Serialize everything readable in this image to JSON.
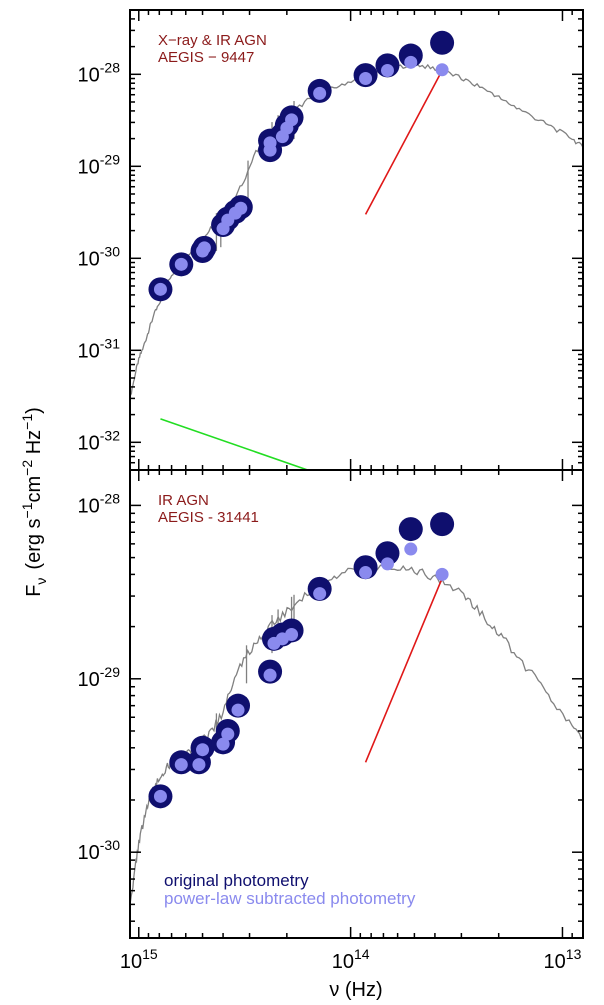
{
  "colors": {
    "original": "#0f0f6e",
    "subtracted": "#8a8aee",
    "template": "#808080",
    "powerlaw_red": "#e01818",
    "powerlaw_green": "#22dd22",
    "annotation": "#8b1a1a"
  },
  "y_label": {
    "symbol": "F",
    "sub": "ν",
    "open": "(erg s",
    "e1": "−1",
    "mid": "cm",
    "e2": "−2",
    "hz": " Hz",
    "e3": "−1",
    "close": ")"
  },
  "x_label": "ν (Hz)",
  "chart_data": [
    {
      "type": "scatter",
      "panel": "top",
      "annotation": [
        "X−ray & IR AGN",
        "AEGIS − 9447"
      ],
      "x_scale": "log",
      "x_reversed": true,
      "xlim": [
        1100000000000000.0,
        8000000000000.0
      ],
      "y_scale": "log",
      "ylim": [
        5e-33,
        5e-28
      ],
      "x_ticks": [
        {
          "base": "10",
          "exp": "15"
        },
        {
          "base": "10",
          "exp": "14"
        },
        {
          "base": "10",
          "exp": "13"
        }
      ],
      "y_ticks": [
        {
          "base": "10",
          "exp": "-28"
        },
        {
          "base": "10",
          "exp": "-29"
        },
        {
          "base": "10",
          "exp": "-30"
        },
        {
          "base": "10",
          "exp": "-31"
        },
        {
          "base": "10",
          "exp": "-32"
        }
      ],
      "series": [
        {
          "role": "original",
          "x": [
            790000000000000.0,
            630000000000000.0,
            500000000000000.0,
            490000000000000.0,
            400000000000000.0,
            380000000000000.0,
            350000000000000.0,
            330000000000000.0,
            240000000000000.0,
            240000000000000.0,
            210000000000000.0,
            200000000000000.0,
            190000000000000.0,
            140000000000000.0,
            85000000000000.0,
            67000000000000.0,
            52000000000000.0,
            37000000000000.0
          ],
          "y": [
            4.6e-31,
            8.6e-31,
            1.2e-30,
            1.3e-30,
            2.3e-30,
            2.7e-30,
            3.2e-30,
            3.6e-30,
            1.5e-29,
            1.9e-29,
            2.2e-29,
            2.8e-29,
            3.4e-29,
            6.6e-29,
            9.8e-29,
            1.25e-28,
            1.6e-28,
            2.2e-28
          ]
        },
        {
          "role": "subtracted",
          "x": [
            790000000000000.0,
            630000000000000.0,
            500000000000000.0,
            490000000000000.0,
            400000000000000.0,
            380000000000000.0,
            350000000000000.0,
            330000000000000.0,
            240000000000000.0,
            240000000000000.0,
            210000000000000.0,
            200000000000000.0,
            190000000000000.0,
            140000000000000.0,
            85000000000000.0,
            67000000000000.0,
            52000000000000.0,
            37000000000000.0
          ],
          "y": [
            4.6e-31,
            8.6e-31,
            1.2e-30,
            1.3e-30,
            2.1e-30,
            2.6e-30,
            3.1e-30,
            3.5e-30,
            1.5e-29,
            1.8e-29,
            2.1e-29,
            2.6e-29,
            3.2e-29,
            6.2e-29,
            9e-29,
            1.1e-28,
            1.35e-28,
            1.12e-28
          ]
        }
      ],
      "template": {
        "x": [
          1100000000000000.0,
          1050000000000000.0,
          1000000000000000.0,
          950000000000000.0,
          900000000000000.0,
          850000000000000.0,
          800000000000000.0,
          750000000000000.0,
          700000000000000.0,
          650000000000000.0,
          600000000000000.0,
          550000000000000.0,
          500000000000000.0,
          450000000000000.0,
          400000000000000.0,
          360000000000000.0,
          320000000000000.0,
          280000000000000.0,
          250000000000000.0,
          220000000000000.0,
          190000000000000.0,
          160000000000000.0,
          130000000000000.0,
          110000000000000.0,
          90000000000000.0,
          75000000000000.0,
          60000000000000.0,
          50000000000000.0,
          42000000000000.0,
          36000000000000.0,
          30000000000000.0,
          26000000000000.0,
          22000000000000.0,
          19000000000000.0,
          16000000000000.0,
          13000000000000.0,
          11000000000000.0,
          9000000000000.0,
          8000000000000.0
        ],
        "y": [
          3e-32,
          5e-32,
          8e-32,
          1.1e-31,
          1.6e-31,
          2.4e-31,
          3.2e-31,
          4.8e-31,
          6.5e-31,
          8.5e-31,
          1.05e-30,
          1.3e-30,
          1.6e-30,
          2.2e-30,
          2.8e-30,
          4e-30,
          7e-30,
          1.4e-29,
          2e-29,
          2.8e-29,
          3.8e-29,
          5.2e-29,
          6.5e-29,
          7.8e-29,
          9.2e-29,
          1.05e-28,
          1.2e-28,
          1.3e-28,
          1.18e-28,
          1.08e-28,
          9e-29,
          7.8e-29,
          6.5e-29,
          5.2e-29,
          4.2e-29,
          3.2e-29,
          2.6e-29,
          2e-29,
          1.6e-29
        ]
      },
      "lines": [
        {
          "color": "powerlaw_red",
          "x": [
            85000000000000.0,
            37000000000000.0
          ],
          "y": [
            3e-30,
            1.1e-28
          ]
        },
        {
          "color": "powerlaw_green",
          "x": [
            790000000000000.0,
            140000000000000.0
          ],
          "y": [
            1.8e-32,
            4.5e-33
          ]
        }
      ]
    },
    {
      "type": "scatter",
      "panel": "bottom",
      "annotation": [
        "IR AGN",
        "AEGIS - 31441"
      ],
      "x_scale": "log",
      "x_reversed": true,
      "xlim": [
        1100000000000000.0,
        8000000000000.0
      ],
      "y_scale": "log",
      "ylim": [
        3.2e-31,
        1.6e-28
      ],
      "x_ticks": [
        {
          "base": "10",
          "exp": "15"
        },
        {
          "base": "10",
          "exp": "14"
        },
        {
          "base": "10",
          "exp": "13"
        }
      ],
      "y_ticks": [
        {
          "base": "10",
          "exp": "-28"
        },
        {
          "base": "10",
          "exp": "-29"
        },
        {
          "base": "10",
          "exp": "-30"
        }
      ],
      "series": [
        {
          "role": "original",
          "x": [
            790000000000000.0,
            630000000000000.0,
            520000000000000.0,
            500000000000000.0,
            400000000000000.0,
            380000000000000.0,
            340000000000000.0,
            240000000000000.0,
            230000000000000.0,
            210000000000000.0,
            190000000000000.0,
            140000000000000.0,
            85000000000000.0,
            67000000000000.0,
            52000000000000.0,
            37000000000000.0
          ],
          "y": [
            2.1e-30,
            3.3e-30,
            3.3e-30,
            4e-30,
            4.3e-30,
            5e-30,
            7e-30,
            1.1e-29,
            1.7e-29,
            1.8e-29,
            1.9e-29,
            3.3e-29,
            4.4e-29,
            5.3e-29,
            7.3e-29,
            7.8e-29
          ]
        },
        {
          "role": "subtracted",
          "x": [
            790000000000000.0,
            630000000000000.0,
            520000000000000.0,
            500000000000000.0,
            400000000000000.0,
            380000000000000.0,
            340000000000000.0,
            240000000000000.0,
            230000000000000.0,
            210000000000000.0,
            190000000000000.0,
            140000000000000.0,
            85000000000000.0,
            67000000000000.0,
            52000000000000.0,
            37000000000000.0
          ],
          "y": [
            2.1e-30,
            3.2e-30,
            3.2e-30,
            3.9e-30,
            4.2e-30,
            4.8e-30,
            6.6e-30,
            1.05e-29,
            1.6e-29,
            1.7e-29,
            1.8e-29,
            3.1e-29,
            4.1e-29,
            4.6e-29,
            5.6e-29,
            4e-29
          ]
        }
      ],
      "template": {
        "x": [
          1100000000000000.0,
          1050000000000000.0,
          1000000000000000.0,
          950000000000000.0,
          900000000000000.0,
          850000000000000.0,
          800000000000000.0,
          750000000000000.0,
          700000000000000.0,
          650000000000000.0,
          600000000000000.0,
          550000000000000.0,
          500000000000000.0,
          450000000000000.0,
          400000000000000.0,
          360000000000000.0,
          320000000000000.0,
          280000000000000.0,
          250000000000000.0,
          220000000000000.0,
          190000000000000.0,
          160000000000000.0,
          130000000000000.0,
          110000000000000.0,
          90000000000000.0,
          75000000000000.0,
          60000000000000.0,
          50000000000000.0,
          42000000000000.0,
          36000000000000.0,
          30000000000000.0,
          26000000000000.0,
          22000000000000.0,
          19000000000000.0,
          16000000000000.0,
          13000000000000.0,
          11000000000000.0,
          9000000000000.0,
          8000000000000.0
        ],
        "y": [
          5e-31,
          7.5e-31,
          1.1e-30,
          1.5e-30,
          1.9e-30,
          2.3e-30,
          2.7e-30,
          3e-30,
          3.3e-30,
          3.5e-30,
          3.7e-30,
          4e-30,
          4.4e-30,
          5e-30,
          6.5e-30,
          9.5e-30,
          1.3e-29,
          1.6e-29,
          1.9e-29,
          2.2e-29,
          2.6e-29,
          3.1e-29,
          3.6e-29,
          4e-29,
          4.3e-29,
          4.5e-29,
          4.4e-29,
          4.2e-29,
          3.9e-29,
          3.6e-29,
          3.1e-29,
          2.6e-29,
          2.1e-29,
          1.7e-29,
          1.3e-29,
          9.5e-30,
          7e-30,
          5.3e-30,
          4.6e-30
        ]
      },
      "lines": [
        {
          "color": "powerlaw_red",
          "x": [
            85000000000000.0,
            37000000000000.0
          ],
          "y": [
            3.3e-30,
            3.8e-29
          ]
        }
      ],
      "legend": {
        "position": "bottom-left",
        "entries": [
          {
            "role": "original",
            "label": "original photometry"
          },
          {
            "role": "subtracted",
            "label": "power-law subtracted photometry"
          }
        ]
      }
    }
  ]
}
